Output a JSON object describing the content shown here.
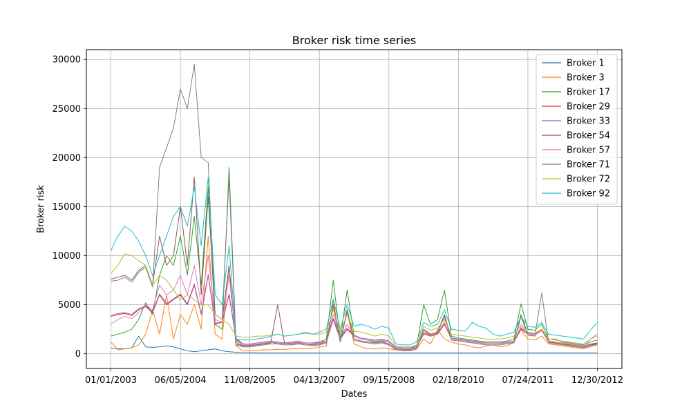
{
  "chart_data": {
    "type": "line",
    "title": "Broker risk time series",
    "xlabel": "Dates",
    "ylabel": "Broker risk",
    "x_tick_labels": [
      "01/01/2003",
      "06/05/2004",
      "11/08/2005",
      "04/13/2007",
      "09/15/2008",
      "02/18/2010",
      "07/24/2011",
      "12/30/2012"
    ],
    "y_ticks": [
      0,
      5000,
      10000,
      15000,
      20000,
      25000,
      30000
    ],
    "y_tick_labels": [
      "0",
      "5000",
      "10000",
      "15000",
      "20000",
      "25000",
      "30000"
    ],
    "x_range_index": [
      0,
      70
    ],
    "ylim": [
      -1500,
      31000
    ],
    "grid": true,
    "legend_position": "top-right",
    "x_index_note": "x values are evenly spaced sample indices; tick labels appear every 10 samples",
    "series": [
      {
        "name": "Broker 1",
        "color": "#1f77b4",
        "values": [
          600,
          500,
          520,
          600,
          1800,
          700,
          650,
          700,
          800,
          700,
          500,
          300,
          200,
          300,
          400,
          500,
          300,
          200,
          150,
          100,
          100,
          100,
          80,
          80,
          80,
          80,
          80,
          80,
          80,
          80,
          80,
          80,
          80,
          80,
          80,
          80,
          80,
          80,
          80,
          80,
          80,
          80,
          80,
          80,
          80,
          80,
          80,
          80,
          80,
          80,
          80,
          80,
          80,
          80,
          80,
          80,
          80,
          80,
          80,
          80,
          80,
          80,
          80,
          80,
          80,
          80,
          80,
          80,
          80,
          80,
          80
        ]
      },
      {
        "name": "Broker 3",
        "color": "#ff7f0e",
        "values": [
          1200,
          400,
          500,
          600,
          900,
          2000,
          4500,
          2000,
          6000,
          1500,
          4000,
          3000,
          5000,
          2500,
          12000,
          2000,
          1500,
          9000,
          800,
          300,
          300,
          350,
          400,
          400,
          450,
          450,
          500,
          500,
          500,
          550,
          700,
          800,
          5400,
          1200,
          4200,
          1000,
          700,
          500,
          500,
          600,
          500,
          400,
          300,
          300,
          500,
          1500,
          1000,
          2500,
          1500,
          1200,
          1000,
          900,
          700,
          600,
          800,
          900,
          700,
          800,
          1200,
          2500,
          1500,
          1400,
          1800,
          1000,
          900,
          800,
          700,
          600,
          500,
          700,
          900
        ]
      },
      {
        "name": "Broker 17",
        "color": "#2ca02c",
        "values": [
          1800,
          2000,
          2200,
          2500,
          3500,
          5200,
          4000,
          8000,
          10000,
          9000,
          12000,
          8000,
          14000,
          7000,
          17000,
          3000,
          2500,
          19000,
          1200,
          800,
          800,
          900,
          1000,
          1200,
          1000,
          1000,
          1100,
          1200,
          1000,
          1000,
          1200,
          1500,
          7500,
          1500,
          6500,
          1800,
          1500,
          1400,
          1200,
          1300,
          1200,
          600,
          500,
          500,
          800,
          5000,
          3000,
          3500,
          6500,
          1800,
          1600,
          1500,
          1400,
          1300,
          1200,
          1200,
          1200,
          1300,
          1500,
          5100,
          2500,
          2400,
          3000,
          1500,
          1500,
          1200,
          1100,
          1000,
          900,
          1200,
          1400
        ]
      },
      {
        "name": "Broker 29",
        "color": "#d62728",
        "values": [
          3800,
          4000,
          4100,
          3900,
          4500,
          4800,
          4200,
          6000,
          5000,
          5500,
          6000,
          5000,
          7000,
          4000,
          8000,
          3000,
          3200,
          6000,
          1500,
          900,
          900,
          1000,
          1100,
          1200,
          1100,
          1000,
          1100,
          1200,
          1000,
          1000,
          1100,
          1200,
          3500,
          1500,
          2500,
          1800,
          1500,
          1400,
          1300,
          1400,
          1200,
          600,
          500,
          500,
          700,
          2000,
          1800,
          2000,
          3000,
          1500,
          1400,
          1300,
          1200,
          1100,
          1000,
          1000,
          1000,
          1100,
          1200,
          2500,
          2000,
          1900,
          2400,
          1200,
          1100,
          1000,
          900,
          800,
          700,
          900,
          1000
        ]
      },
      {
        "name": "Broker 33",
        "color": "#9467bd",
        "values": [
          3900,
          4100,
          4200,
          4000,
          4600,
          4900,
          4300,
          6100,
          5100,
          5600,
          6100,
          5100,
          7100,
          4100,
          8100,
          3100,
          3300,
          6100,
          1600,
          1000,
          1000,
          1100,
          1200,
          1300,
          1200,
          1100,
          1200,
          1300,
          1100,
          1100,
          1200,
          1300,
          3600,
          1600,
          2600,
          1900,
          1600,
          1500,
          1400,
          1500,
          1300,
          700,
          600,
          600,
          800,
          2100,
          1900,
          2100,
          3100,
          1600,
          1500,
          1400,
          1300,
          1200,
          1100,
          1100,
          1100,
          1200,
          1300,
          2600,
          2100,
          2000,
          2500,
          1300,
          1200,
          1100,
          1000,
          900,
          800,
          1000,
          1100
        ]
      },
      {
        "name": "Broker 54",
        "color": "#8c564b",
        "values": [
          7600,
          7800,
          8000,
          7500,
          8500,
          9000,
          7000,
          12000,
          9000,
          10000,
          15000,
          9000,
          18000,
          6000,
          16000,
          4000,
          3500,
          9000,
          1000,
          800,
          800,
          900,
          1000,
          1100,
          5000,
          1000,
          1000,
          1100,
          1000,
          900,
          1000,
          1200,
          5000,
          1300,
          4500,
          1500,
          1300,
          1200,
          1100,
          1200,
          1000,
          500,
          400,
          400,
          600,
          2500,
          2000,
          2200,
          4000,
          1500,
          1400,
          1300,
          1200,
          1100,
          1000,
          1000,
          1000,
          1100,
          1200,
          4000,
          2000,
          1900,
          2500,
          1200,
          1100,
          1000,
          900,
          800,
          700,
          900,
          1100
        ]
      },
      {
        "name": "Broker 57",
        "color": "#e377c2",
        "values": [
          3000,
          3500,
          3800,
          3600,
          4200,
          5000,
          4500,
          7000,
          6000,
          6500,
          8000,
          6000,
          9000,
          5000,
          10000,
          3500,
          3200,
          8000,
          1400,
          900,
          900,
          1000,
          1100,
          1200,
          1100,
          1000,
          1100,
          1200,
          1000,
          1000,
          1100,
          1200,
          4000,
          1500,
          3000,
          1800,
          1500,
          1400,
          1300,
          1400,
          1200,
          600,
          500,
          500,
          700,
          2200,
          1900,
          2100,
          3200,
          1500,
          1400,
          1300,
          1200,
          1100,
          1000,
          1000,
          1000,
          1100,
          1200,
          2800,
          2000,
          1900,
          2500,
          1300,
          1200,
          1100,
          1000,
          900,
          800,
          1500,
          2000
        ]
      },
      {
        "name": "Broker 71",
        "color": "#7f7f7f",
        "values": [
          7400,
          7500,
          7800,
          7300,
          8300,
          8800,
          6800,
          19000,
          21000,
          23000,
          27000,
          25000,
          29500,
          20000,
          19500,
          4000,
          3500,
          18000,
          900,
          700,
          700,
          800,
          900,
          1000,
          1000,
          900,
          900,
          1000,
          900,
          800,
          900,
          1100,
          4800,
          1200,
          4300,
          1400,
          1200,
          1100,
          1000,
          1100,
          900,
          400,
          300,
          300,
          500,
          2400,
          1900,
          2100,
          3800,
          1400,
          1300,
          1200,
          1100,
          1000,
          900,
          900,
          900,
          1000,
          1100,
          3800,
          1900,
          1800,
          6200,
          1100,
          1000,
          900,
          800,
          700,
          600,
          800,
          1000
        ]
      },
      {
        "name": "Broker 72",
        "color": "#bcbd22",
        "values": [
          8200,
          9000,
          10200,
          10000,
          9500,
          9000,
          7000,
          8000,
          7500,
          6500,
          5500,
          6000,
          5500,
          5000,
          5000,
          4000,
          3500,
          3000,
          1800,
          1700,
          1700,
          1800,
          1800,
          1900,
          2000,
          1800,
          1900,
          2000,
          2200,
          2000,
          2000,
          2200,
          4500,
          2200,
          4000,
          2300,
          2200,
          2000,
          1800,
          2000,
          1800,
          800,
          700,
          700,
          900,
          2800,
          2400,
          2600,
          3500,
          2000,
          1900,
          1800,
          1700,
          1600,
          1500,
          1500,
          1500,
          1600,
          1800,
          3000,
          2200,
          2100,
          2500,
          1500,
          1400,
          1300,
          1200,
          1100,
          1000,
          1500,
          1800
        ]
      },
      {
        "name": "Broker 92",
        "color": "#17becf",
        "values": [
          10500,
          12000,
          13000,
          12500,
          11500,
          10000,
          8000,
          10000,
          12000,
          14000,
          15000,
          13000,
          17000,
          11000,
          18000,
          6000,
          5000,
          11000,
          1500,
          1400,
          1400,
          1500,
          1600,
          1800,
          2000,
          1800,
          1900,
          2000,
          2100,
          2000,
          2200,
          2500,
          5600,
          2500,
          5000,
          2800,
          3000,
          2800,
          2500,
          2800,
          2600,
          1000,
          900,
          900,
          1200,
          3200,
          2800,
          3000,
          4500,
          2500,
          2400,
          2300,
          3200,
          2800,
          2600,
          2000,
          1800,
          2000,
          2200,
          3800,
          2800,
          2700,
          3200,
          2000,
          1900,
          1800,
          1700,
          1600,
          1500,
          2400,
          3200
        ]
      }
    ]
  }
}
